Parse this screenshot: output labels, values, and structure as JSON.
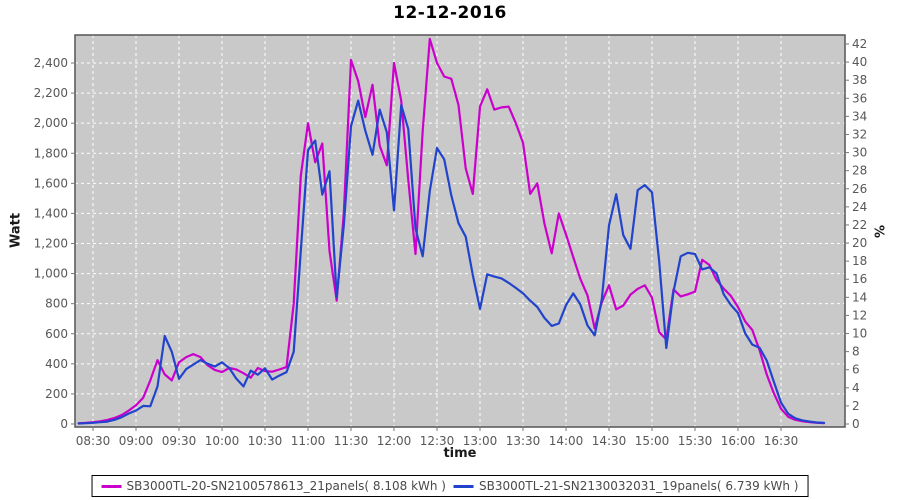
{
  "title": "12-12-2016",
  "axes": {
    "y_left_label": "Watt",
    "y_right_label": "%",
    "x_label": "time",
    "y_left_ticks": [
      "0",
      "200",
      "400",
      "600",
      "800",
      "1,000",
      "1,200",
      "1,400",
      "1,600",
      "1,800",
      "2,000",
      "2,200",
      "2,400"
    ],
    "y_right_ticks": [
      0,
      2,
      4,
      6,
      8,
      10,
      12,
      14,
      16,
      18,
      20,
      22,
      24,
      26,
      28,
      30,
      32,
      34,
      36,
      38,
      40,
      42
    ],
    "x_ticks": [
      "08:30",
      "09:00",
      "09:30",
      "10:00",
      "10:30",
      "11:00",
      "11:30",
      "12:00",
      "12:30",
      "13:00",
      "13:30",
      "14:00",
      "14:30",
      "15:00",
      "15:30",
      "16:00",
      "16:30"
    ]
  },
  "colors": {
    "plot_bg": "#C9C9C9",
    "grid": "#FFFFFF",
    "plot_border": "#555555",
    "tick_text": "#585858",
    "series1": "#CC00CC",
    "series2": "#2244CC"
  },
  "legend": {
    "entries": [
      {
        "label": "SB3000TL-20-SN2100578613_21panels( 8.108 kWh )",
        "color": "#CC00CC"
      },
      {
        "label": "SB3000TL-21-SN2130032031_19panels( 6.739 kWh )",
        "color": "#2244CC"
      }
    ]
  },
  "chart_data": {
    "type": "line",
    "title": "12-12-2016",
    "xlabel": "time",
    "ylabel_left": "Watt",
    "ylabel_right": "%",
    "ylim_left": [
      0,
      2580
    ],
    "ylim_right": [
      0,
      42.9
    ],
    "x_range": [
      "08:17",
      "17:14"
    ],
    "grid": true,
    "legend_position": "bottom",
    "x": [
      "08:20",
      "08:25",
      "08:30",
      "08:35",
      "08:40",
      "08:45",
      "08:50",
      "08:55",
      "09:00",
      "09:05",
      "09:10",
      "09:15",
      "09:20",
      "09:25",
      "09:30",
      "09:35",
      "09:40",
      "09:45",
      "09:50",
      "09:55",
      "10:00",
      "10:05",
      "10:10",
      "10:15",
      "10:20",
      "10:25",
      "10:30",
      "10:35",
      "10:40",
      "10:45",
      "10:50",
      "10:55",
      "11:00",
      "11:05",
      "11:10",
      "11:15",
      "11:20",
      "11:25",
      "11:30",
      "11:35",
      "11:40",
      "11:45",
      "11:50",
      "11:55",
      "12:00",
      "12:05",
      "12:10",
      "12:15",
      "12:20",
      "12:25",
      "12:30",
      "12:35",
      "12:40",
      "12:45",
      "12:50",
      "12:55",
      "13:00",
      "13:05",
      "13:10",
      "13:15",
      "13:20",
      "13:25",
      "13:30",
      "13:35",
      "13:40",
      "13:45",
      "13:50",
      "13:55",
      "14:00",
      "14:05",
      "14:10",
      "14:15",
      "14:20",
      "14:25",
      "14:30",
      "14:35",
      "14:40",
      "14:45",
      "14:50",
      "14:55",
      "15:00",
      "15:05",
      "15:10",
      "15:15",
      "15:20",
      "15:25",
      "15:30",
      "15:35",
      "15:40",
      "15:45",
      "15:50",
      "15:55",
      "16:00",
      "16:05",
      "16:10",
      "16:15",
      "16:20",
      "16:25",
      "16:30",
      "16:35",
      "16:40",
      "16:45",
      "16:50",
      "16:55",
      "17:00"
    ],
    "series": [
      {
        "name": "SB3000TL-20-SN2100578613_21panels( 8.108 kWh )",
        "energy_kwh": 8.108,
        "color": "#CC00CC",
        "values": [
          5,
          8,
          12,
          18,
          27,
          40,
          60,
          90,
          125,
          175,
          290,
          425,
          330,
          290,
          410,
          445,
          465,
          445,
          390,
          360,
          345,
          372,
          362,
          338,
          308,
          372,
          352,
          348,
          362,
          378,
          800,
          1650,
          2000,
          1740,
          1865,
          1150,
          820,
          1400,
          2420,
          2280,
          2040,
          2255,
          1850,
          1720,
          2400,
          2150,
          1620,
          1130,
          1950,
          2560,
          2400,
          2310,
          2295,
          2120,
          1700,
          1530,
          2110,
          2225,
          2090,
          2105,
          2110,
          2000,
          1870,
          1530,
          1600,
          1330,
          1135,
          1400,
          1260,
          1110,
          965,
          855,
          635,
          810,
          922,
          762,
          788,
          860,
          898,
          922,
          840,
          610,
          562,
          895,
          848,
          862,
          880,
          1092,
          1058,
          958,
          900,
          852,
          778,
          682,
          625,
          492,
          330,
          205,
          102,
          48,
          28,
          18,
          12,
          8,
          5
        ]
      },
      {
        "name": "SB3000TL-21-SN2130032031_19panels( 6.739 kWh )",
        "energy_kwh": 6.739,
        "color": "#2244CC",
        "values": [
          3,
          5,
          8,
          12,
          16,
          28,
          45,
          70,
          90,
          120,
          118,
          250,
          585,
          480,
          300,
          365,
          395,
          425,
          400,
          382,
          410,
          372,
          302,
          250,
          355,
          328,
          370,
          295,
          322,
          345,
          480,
          1150,
          1820,
          1885,
          1525,
          1680,
          845,
          1320,
          1980,
          2150,
          1950,
          1790,
          2090,
          1940,
          1420,
          2120,
          1960,
          1300,
          1115,
          1550,
          1835,
          1760,
          1520,
          1335,
          1245,
          990,
          765,
          995,
          980,
          968,
          938,
          905,
          868,
          820,
          778,
          705,
          652,
          668,
          790,
          868,
          795,
          655,
          590,
          830,
          1320,
          1528,
          1255,
          1165,
          1555,
          1588,
          1540,
          1080,
          505,
          880,
          1115,
          1138,
          1130,
          1028,
          1042,
          1002,
          862,
          792,
          738,
          602,
          528,
          508,
          422,
          282,
          142,
          68,
          38,
          24,
          16,
          10,
          7
        ]
      }
    ]
  }
}
